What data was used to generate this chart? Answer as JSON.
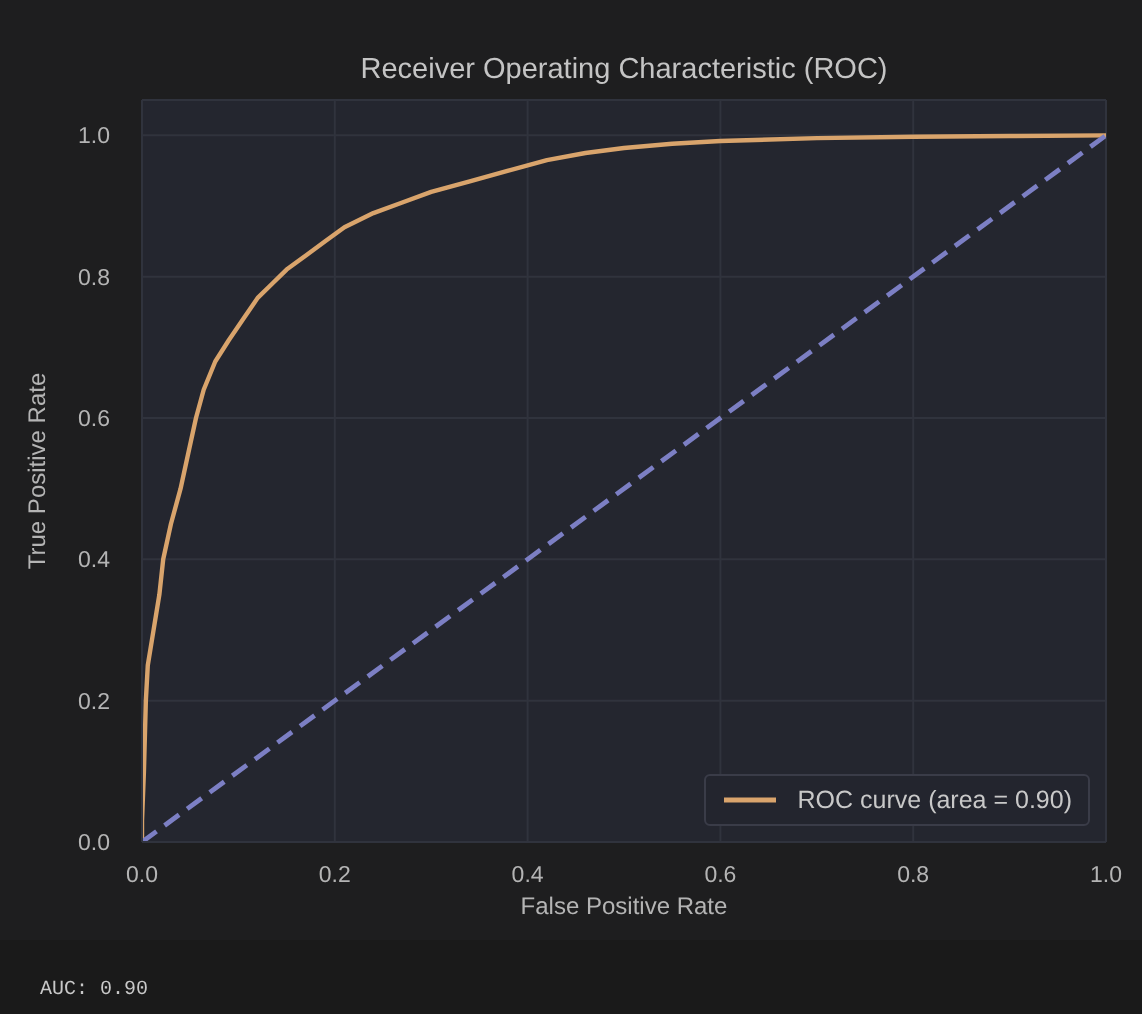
{
  "chart_data": {
    "type": "line",
    "title": "Receiver Operating Characteristic (ROC)",
    "xlabel": "False Positive Rate",
    "ylabel": "True Positive Rate",
    "xlim": [
      0,
      1
    ],
    "ylim": [
      0,
      1.05
    ],
    "xticks": [
      {
        "value": 0,
        "label": "0.0"
      },
      0.2,
      0.4,
      0.6,
      0.8,
      {
        "value": 1,
        "label": "1.0"
      }
    ],
    "yticks": [
      {
        "value": 0,
        "label": "0.0"
      },
      0.2,
      0.4,
      0.6,
      0.8,
      {
        "value": 1,
        "label": "1.0"
      }
    ],
    "grid": true,
    "legend": "bottom right",
    "marker": "none",
    "series": [
      {
        "name": "ROC curve (area = 0.90)",
        "color": "#d9a46c",
        "line_style": "solid",
        "x": [
          0,
          0,
          0.002,
          0.004,
          0.006,
          0.012,
          0.018,
          0.022,
          0.03,
          0.04,
          0.048,
          0.056,
          0.064,
          0.076,
          0.09,
          0.105,
          0.12,
          0.135,
          0.15,
          0.17,
          0.19,
          0.21,
          0.24,
          0.27,
          0.3,
          0.34,
          0.38,
          0.42,
          0.46,
          0.5,
          0.55,
          0.6,
          0.7,
          0.8,
          0.9,
          1
        ],
        "values": [
          0,
          0.03,
          0.1,
          0.2,
          0.25,
          0.3,
          0.35,
          0.4,
          0.45,
          0.5,
          0.55,
          0.6,
          0.64,
          0.68,
          0.71,
          0.74,
          0.77,
          0.79,
          0.81,
          0.83,
          0.85,
          0.87,
          0.89,
          0.905,
          0.92,
          0.935,
          0.95,
          0.965,
          0.975,
          0.982,
          0.988,
          0.992,
          0.996,
          0.998,
          0.999,
          1
        ]
      },
      {
        "color": "#7c7fc4",
        "line_style": "dashed",
        "x": [
          0,
          1
        ],
        "values": [
          0,
          1
        ]
      }
    ],
    "annotations": [
      "AUC: 0.90"
    ]
  }
}
